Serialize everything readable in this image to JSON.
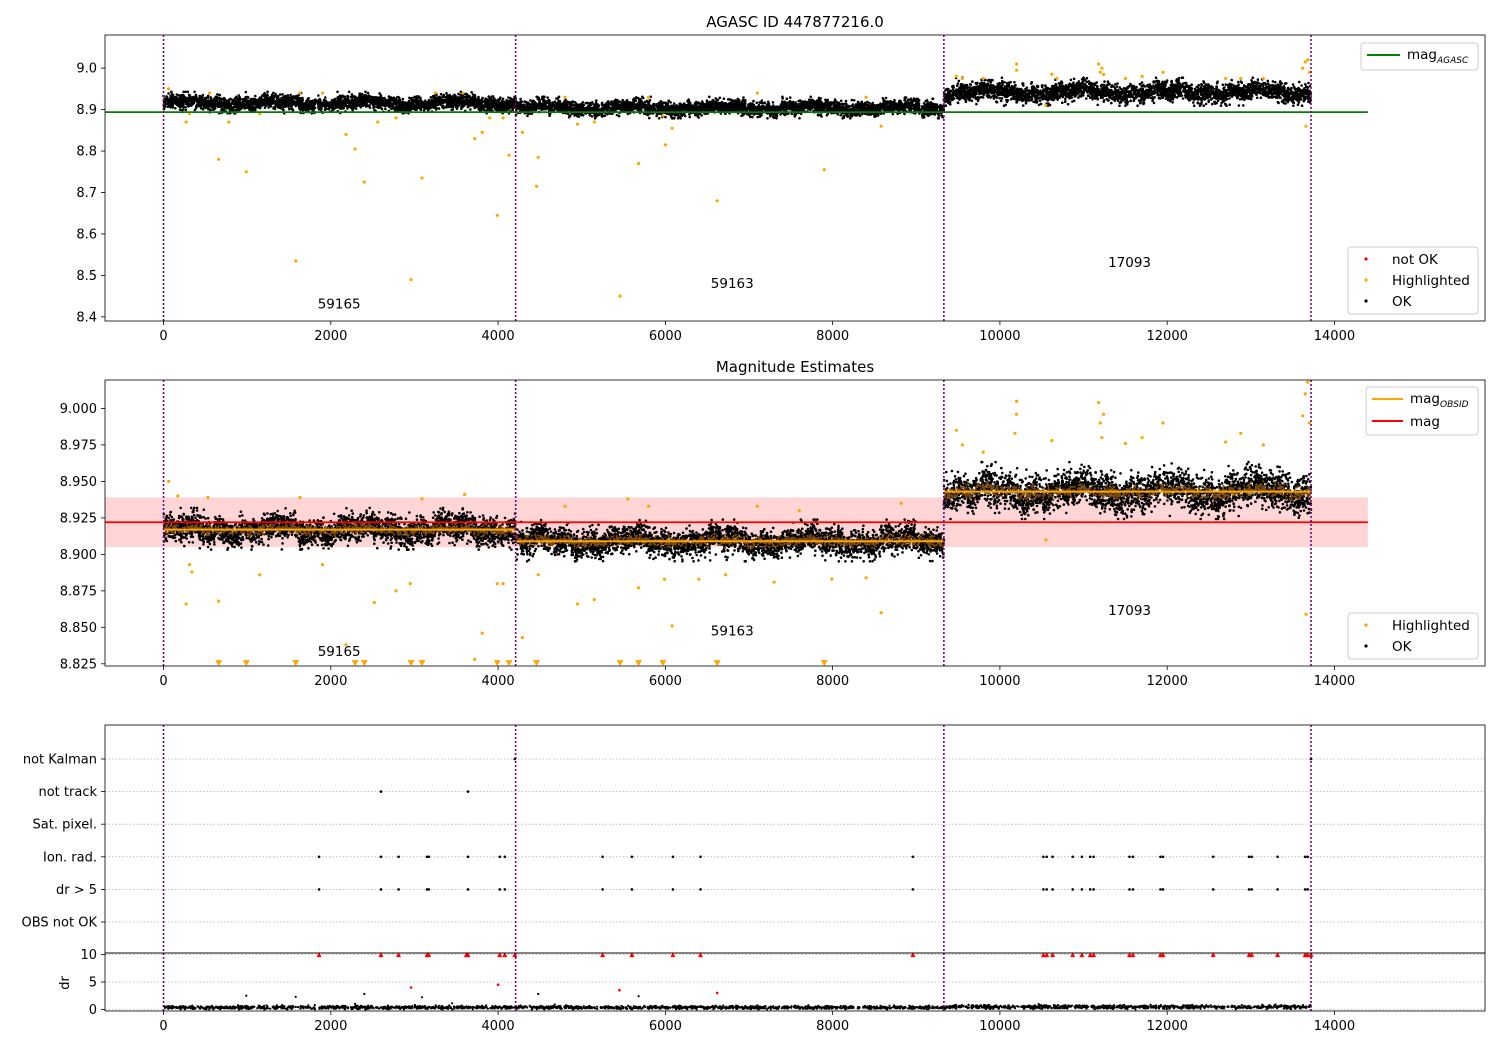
{
  "colors": {
    "ok": "#000000",
    "highlighted": "#ffa500",
    "not_ok": "#ff0000",
    "agasc_line": "#008000",
    "mag_line": "#ff0000",
    "obsid_line": "#ffa500",
    "obs_boundary": "#800080",
    "band": "#ffd5d5",
    "flag_grid": "#b0b0b0"
  },
  "chart_data": [
    {
      "type": "scatter",
      "title": "AGASC ID 447877216.0",
      "xlabel": "",
      "ylabel": "",
      "xlim": [
        -700,
        15800
      ],
      "ylim": [
        8.39,
        9.08
      ],
      "x_ticks": [
        0,
        2000,
        4000,
        6000,
        8000,
        10000,
        12000,
        14000
      ],
      "x_tick_labels": [
        "0",
        "2000",
        "4000",
        "6000",
        "8000",
        "10000",
        "12000",
        "14000"
      ],
      "y_ticks": [
        8.4,
        8.5,
        8.6,
        8.7,
        8.8,
        8.9,
        9.0
      ],
      "y_tick_labels": [
        "8.4",
        "8.5",
        "8.6",
        "8.7",
        "8.8",
        "8.9",
        "9.0"
      ],
      "grid": false,
      "legend_placement": "top-right",
      "legend_lines": [
        {
          "name": "mag",
          "subscript": "AGASC"
        }
      ],
      "legend_points": [
        {
          "name": "not OK",
          "color_key": "not_ok"
        },
        {
          "name": "Highlighted",
          "color_key": "highlighted"
        },
        {
          "name": "OK",
          "color_key": "ok"
        }
      ],
      "points_legend_placement": "bottom-right",
      "agasc_mag": 8.894,
      "agasc_line_x": [
        -700,
        14400
      ],
      "obs_boundaries": [
        0,
        4210,
        9330,
        13720
      ],
      "obs_labels": [
        {
          "text": "59165",
          "x": 2100,
          "y": 8.42
        },
        {
          "text": "59163",
          "x": 6800,
          "y": 8.47
        },
        {
          "text": "17093",
          "x": 11550,
          "y": 8.52
        }
      ],
      "ok_segments": [
        {
          "x0": 0,
          "x1": 4210,
          "mean": 8.916,
          "spread": 0.02
        },
        {
          "x0": 4210,
          "x1": 9330,
          "mean": 8.904,
          "spread": 0.02
        },
        {
          "x0": 9330,
          "x1": 13720,
          "mean": 8.942,
          "spread": 0.026
        }
      ],
      "highlighted_points": [
        [
          60,
          8.95
        ],
        [
          270,
          8.87
        ],
        [
          310,
          8.89
        ],
        [
          550,
          8.94
        ],
        [
          660,
          8.78
        ],
        [
          780,
          8.87
        ],
        [
          990,
          8.75
        ],
        [
          1150,
          8.89
        ],
        [
          1580,
          8.535
        ],
        [
          1630,
          8.94
        ],
        [
          1900,
          8.94
        ],
        [
          2180,
          8.84
        ],
        [
          2290,
          8.805
        ],
        [
          2400,
          8.725
        ],
        [
          2560,
          8.87
        ],
        [
          2780,
          8.88
        ],
        [
          2960,
          8.49
        ],
        [
          3090,
          8.735
        ],
        [
          3250,
          8.94
        ],
        [
          3580,
          8.94
        ],
        [
          3720,
          8.83
        ],
        [
          3810,
          8.845
        ],
        [
          3900,
          8.88
        ],
        [
          3990,
          8.645
        ],
        [
          4060,
          8.88
        ],
        [
          4130,
          8.79
        ],
        [
          4290,
          8.845
        ],
        [
          4480,
          8.785
        ],
        [
          4460,
          8.715
        ],
        [
          4800,
          8.93
        ],
        [
          4950,
          8.865
        ],
        [
          5150,
          8.87
        ],
        [
          5460,
          8.45
        ],
        [
          5680,
          8.77
        ],
        [
          5800,
          8.93
        ],
        [
          5970,
          8.885
        ],
        [
          6000,
          8.815
        ],
        [
          6080,
          8.855
        ],
        [
          6620,
          8.68
        ],
        [
          7100,
          8.94
        ],
        [
          7900,
          8.755
        ],
        [
          8400,
          8.93
        ],
        [
          8580,
          8.86
        ],
        [
          9480,
          8.98
        ],
        [
          9550,
          8.975
        ],
        [
          9800,
          8.975
        ],
        [
          10200,
          9.01
        ],
        [
          10200,
          8.995
        ],
        [
          10550,
          8.91
        ],
        [
          10620,
          8.985
        ],
        [
          10680,
          8.975
        ],
        [
          11180,
          9.01
        ],
        [
          11200,
          8.99
        ],
        [
          11220,
          9.0
        ],
        [
          11240,
          8.985
        ],
        [
          11500,
          8.975
        ],
        [
          11700,
          8.98
        ],
        [
          11950,
          8.99
        ],
        [
          12700,
          8.975
        ],
        [
          12880,
          8.975
        ],
        [
          13150,
          8.975
        ],
        [
          13620,
          9.0
        ],
        [
          13650,
          9.015
        ],
        [
          13680,
          9.02
        ],
        [
          13700,
          8.99
        ],
        [
          13660,
          8.86
        ]
      ],
      "not_ok_points": []
    },
    {
      "type": "scatter",
      "title": "Magnitude Estimates",
      "xlabel": "",
      "ylabel": "",
      "xlim": [
        -700,
        15800
      ],
      "ylim": [
        8.8235,
        9.0195
      ],
      "x_ticks": [
        0,
        2000,
        4000,
        6000,
        8000,
        10000,
        12000,
        14000
      ],
      "x_tick_labels": [
        "0",
        "2000",
        "4000",
        "6000",
        "8000",
        "10000",
        "12000",
        "14000"
      ],
      "y_ticks": [
        8.825,
        8.85,
        8.875,
        8.9,
        8.925,
        8.95,
        8.975,
        9.0
      ],
      "y_tick_labels": [
        "8.825",
        "8.850",
        "8.875",
        "8.900",
        "8.925",
        "8.950",
        "8.975",
        "9.000"
      ],
      "grid": false,
      "legend_placement": "top-right",
      "legend_lines": [
        {
          "name": "mag",
          "subscript": "OBSID",
          "color_key": "obsid_line"
        },
        {
          "name": "mag",
          "subscript": "",
          "color_key": "mag_line"
        }
      ],
      "legend_points": [
        {
          "name": "Highlighted",
          "color_key": "highlighted"
        },
        {
          "name": "OK",
          "color_key": "ok"
        }
      ],
      "points_legend_placement": "bottom-right",
      "mag": 8.922,
      "mag_band": [
        8.905,
        8.939
      ],
      "band_x": [
        -700,
        14400
      ],
      "obs_boundaries": [
        0,
        4210,
        9330,
        13720
      ],
      "obsid_mags": [
        {
          "x0": 0,
          "x1": 4210,
          "mag": 8.917
        },
        {
          "x0": 4210,
          "x1": 9330,
          "mag": 8.909
        },
        {
          "x0": 9330,
          "x1": 13720,
          "mag": 8.943
        }
      ],
      "obs_labels": [
        {
          "text": "59165",
          "x": 2100,
          "y": 8.8305
        },
        {
          "text": "59163",
          "x": 6800,
          "y": 8.8445
        },
        {
          "text": "17093",
          "x": 11550,
          "y": 8.8585
        }
      ],
      "ok_segments": [
        {
          "x0": 0,
          "x1": 4210,
          "mean": 8.917,
          "spread": 0.011
        },
        {
          "x0": 4210,
          "x1": 9330,
          "mean": 8.909,
          "spread": 0.011
        },
        {
          "x0": 9330,
          "x1": 13720,
          "mean": 8.943,
          "spread": 0.015
        }
      ],
      "highlighted_points": [
        [
          60,
          8.95
        ],
        [
          170,
          8.94
        ],
        [
          270,
          8.866
        ],
        [
          310,
          8.893
        ],
        [
          340,
          8.888
        ],
        [
          530,
          8.939
        ],
        [
          660,
          8.868
        ],
        [
          1150,
          8.886
        ],
        [
          1630,
          8.939
        ],
        [
          1900,
          8.893
        ],
        [
          2180,
          8.838
        ],
        [
          2520,
          8.867
        ],
        [
          2780,
          8.875
        ],
        [
          2950,
          8.88
        ],
        [
          3090,
          8.938
        ],
        [
          3600,
          8.941
        ],
        [
          3720,
          8.828
        ],
        [
          3810,
          8.846
        ],
        [
          3990,
          8.88
        ],
        [
          4060,
          8.88
        ],
        [
          4290,
          8.843
        ],
        [
          4480,
          8.886
        ],
        [
          4800,
          8.933
        ],
        [
          4950,
          8.866
        ],
        [
          5150,
          8.869
        ],
        [
          5550,
          8.938
        ],
        [
          5680,
          8.877
        ],
        [
          5800,
          8.933
        ],
        [
          5990,
          8.883
        ],
        [
          6080,
          8.851
        ],
        [
          6400,
          8.883
        ],
        [
          6720,
          8.886
        ],
        [
          7100,
          8.933
        ],
        [
          7300,
          8.881
        ],
        [
          7600,
          8.93
        ],
        [
          7990,
          8.883
        ],
        [
          8400,
          8.884
        ],
        [
          8580,
          8.86
        ],
        [
          8820,
          8.935
        ],
        [
          9480,
          8.985
        ],
        [
          9550,
          8.975
        ],
        [
          9800,
          8.97
        ],
        [
          10200,
          9.005
        ],
        [
          10200,
          8.996
        ],
        [
          10180,
          8.983
        ],
        [
          10550,
          8.91
        ],
        [
          10620,
          8.978
        ],
        [
          11180,
          9.004
        ],
        [
          11200,
          8.99
        ],
        [
          11220,
          8.98
        ],
        [
          11240,
          8.996
        ],
        [
          11500,
          8.976
        ],
        [
          11700,
          8.98
        ],
        [
          11950,
          8.99
        ],
        [
          12700,
          8.977
        ],
        [
          12880,
          8.983
        ],
        [
          13150,
          8.975
        ],
        [
          13620,
          8.995
        ],
        [
          13650,
          9.01
        ],
        [
          13680,
          9.018
        ],
        [
          13700,
          8.99
        ],
        [
          13660,
          8.859
        ]
      ],
      "clipped_highlighted_x": [
        660,
        990,
        1580,
        2290,
        2400,
        2960,
        3090,
        3990,
        4130,
        4460,
        5460,
        5680,
        5970,
        6620,
        7900
      ],
      "clipped_value": 8.8255
    },
    {
      "type": "scatter",
      "title": "",
      "xlabel": "",
      "ylabel": "",
      "xlim": [
        -700,
        15800
      ],
      "flag_labels": [
        "not Kalman",
        "not track",
        "Sat. pixel.",
        "Ion. rad.",
        "dr > 5",
        "OBS not OK"
      ],
      "grid": true,
      "obs_boundaries": [
        0,
        4210,
        9330,
        13720
      ],
      "flags": {
        "not Kalman": [
          4200,
          13720
        ],
        "not track": [
          2600,
          3640
        ],
        "Sat. pixel.": [],
        "Ion. rad.": [
          1860,
          2600,
          2810,
          3150,
          3170,
          3640,
          4020,
          4080,
          5250,
          5600,
          6090,
          6420,
          8960,
          10520,
          10560,
          10630,
          10870,
          10980,
          11080,
          11120,
          11550,
          11590,
          11920,
          11950,
          12550,
          12980,
          13010,
          13320,
          13650,
          13680
        ],
        "dr > 5": [
          1860,
          2600,
          2810,
          3150,
          3170,
          3640,
          4020,
          4080,
          5250,
          5600,
          6090,
          6420,
          8960,
          10520,
          10560,
          10630,
          10870,
          10980,
          11080,
          11120,
          11550,
          11590,
          11920,
          11950,
          12550,
          12980,
          13010,
          13320,
          13650,
          13680
        ],
        "OBS not OK": []
      }
    },
    {
      "type": "scatter",
      "title": "",
      "xlabel": "",
      "ylabel": "dr",
      "xlim": [
        -700,
        15800
      ],
      "ylim": [
        -0.3,
        10.3
      ],
      "x_ticks": [
        0,
        2000,
        4000,
        6000,
        8000,
        10000,
        12000,
        14000
      ],
      "x_tick_labels": [
        "0",
        "2000",
        "4000",
        "6000",
        "8000",
        "10000",
        "12000",
        "14000"
      ],
      "y_ticks": [
        0,
        5,
        10
      ],
      "y_tick_labels": [
        "0",
        "5",
        "10"
      ],
      "grid": true,
      "obs_boundaries": [
        0,
        4210,
        9330,
        13720
      ],
      "dr_baseline_segments": [
        {
          "x0": 0,
          "x1": 9330,
          "mean": 0.35,
          "spread": 0.3
        },
        {
          "x0": 9330,
          "x1": 13720,
          "mean": 0.45,
          "spread": 0.35
        }
      ],
      "dr_highlighted_points": [
        [
          2960,
          4.0
        ],
        [
          4000,
          4.5
        ],
        [
          5450,
          3.5
        ],
        [
          6620,
          3.0
        ]
      ],
      "dr_ok_outliers": [
        [
          990,
          2.5
        ],
        [
          1580,
          2.3
        ],
        [
          2290,
          1.0
        ],
        [
          2400,
          2.8
        ],
        [
          3090,
          2.2
        ],
        [
          3450,
          1.1
        ],
        [
          4480,
          2.8
        ],
        [
          5680,
          2.4
        ]
      ],
      "dr_clipped_x": [
        1860,
        2600,
        2810,
        3150,
        3170,
        3620,
        3640,
        4020,
        4080,
        4200,
        5250,
        5600,
        6090,
        6420,
        8960,
        10520,
        10560,
        10630,
        10870,
        10980,
        11080,
        11120,
        11550,
        11590,
        11920,
        11950,
        12550,
        12980,
        13010,
        13320,
        13650,
        13680,
        13720
      ],
      "dr_clip_value": 10
    }
  ]
}
